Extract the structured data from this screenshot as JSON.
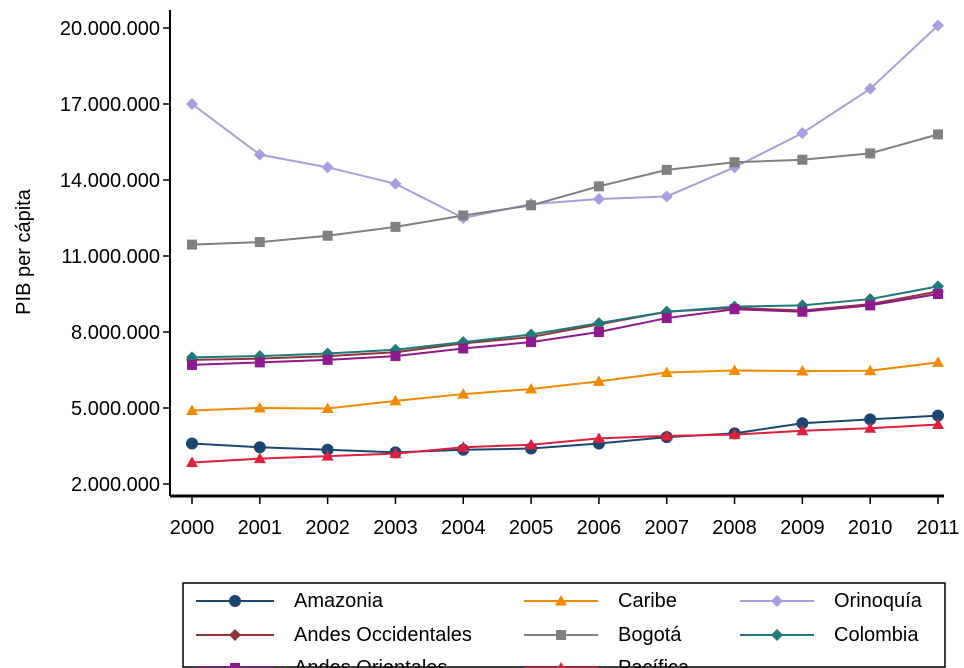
{
  "chart_data": {
    "type": "line",
    "ylabel": "PIB per cápita",
    "xlabel": "",
    "x": [
      "2000",
      "2001",
      "2002",
      "2003",
      "2004",
      "2005",
      "2006",
      "2007",
      "2008",
      "2009",
      "2010",
      "2011"
    ],
    "ylim": [
      1500000,
      21000000
    ],
    "yticks": [
      2000000,
      5000000,
      8000000,
      11000000,
      14000000,
      17000000,
      20000000
    ],
    "ytick_labels": [
      "2.000.000",
      "5.000.000",
      "8.000.000",
      "11.000.000",
      "14.000.000",
      "17.000.000",
      "20.000.000"
    ],
    "grid": false,
    "legend_position": "bottom",
    "series": [
      {
        "name": "Amazonia",
        "color": "#1a476f",
        "marker": "circle",
        "values": [
          3600000,
          3450000,
          3350000,
          3250000,
          3350000,
          3400000,
          3600000,
          3850000,
          4000000,
          4400000,
          4550000,
          4700000
        ]
      },
      {
        "name": "Caribe",
        "color": "#f28a00",
        "marker": "triangle",
        "values": [
          4900000,
          5000000,
          4980000,
          5280000,
          5550000,
          5750000,
          6050000,
          6400000,
          6480000,
          6460000,
          6470000,
          6800000
        ]
      },
      {
        "name": "Orinoquía",
        "color": "#a6a0e0",
        "marker": "diamond",
        "values": [
          17000000,
          15000000,
          14500000,
          13850000,
          12500000,
          13050000,
          13250000,
          13350000,
          14500000,
          15850000,
          17600000,
          20100000
        ]
      },
      {
        "name": "Andes Occidentales",
        "color": "#90353b",
        "marker": "diamond",
        "values": [
          6900000,
          6950000,
          7050000,
          7200000,
          7550000,
          7800000,
          8300000,
          8800000,
          8950000,
          8850000,
          9100000,
          9600000
        ]
      },
      {
        "name": "Bogotá",
        "color": "#808080",
        "marker": "square",
        "values": [
          11450000,
          11550000,
          11800000,
          12150000,
          12600000,
          13000000,
          13750000,
          14400000,
          14700000,
          14800000,
          15050000,
          15800000
        ]
      },
      {
        "name": "Colombia",
        "color": "#1f7a7a",
        "marker": "diamond",
        "values": [
          7000000,
          7050000,
          7150000,
          7300000,
          7600000,
          7900000,
          8350000,
          8800000,
          9000000,
          9050000,
          9300000,
          9800000
        ]
      },
      {
        "name": "Andes Orientales",
        "color": "#8e1a8e",
        "marker": "square",
        "values": [
          6700000,
          6800000,
          6900000,
          7050000,
          7350000,
          7600000,
          8000000,
          8550000,
          8900000,
          8800000,
          9050000,
          9500000
        ]
      },
      {
        "name": "Pacífica",
        "color": "#e0203f",
        "marker": "triangle",
        "values": [
          2850000,
          3000000,
          3100000,
          3200000,
          3450000,
          3550000,
          3800000,
          3900000,
          3950000,
          4100000,
          4200000,
          4350000
        ]
      }
    ],
    "legend_layout": [
      [
        "Amazonia",
        "Caribe",
        "Orinoquía"
      ],
      [
        "Andes Occidentales",
        "Bogotá",
        "Colombia"
      ],
      [
        "Andes Orientales",
        "Pacífica"
      ]
    ]
  }
}
